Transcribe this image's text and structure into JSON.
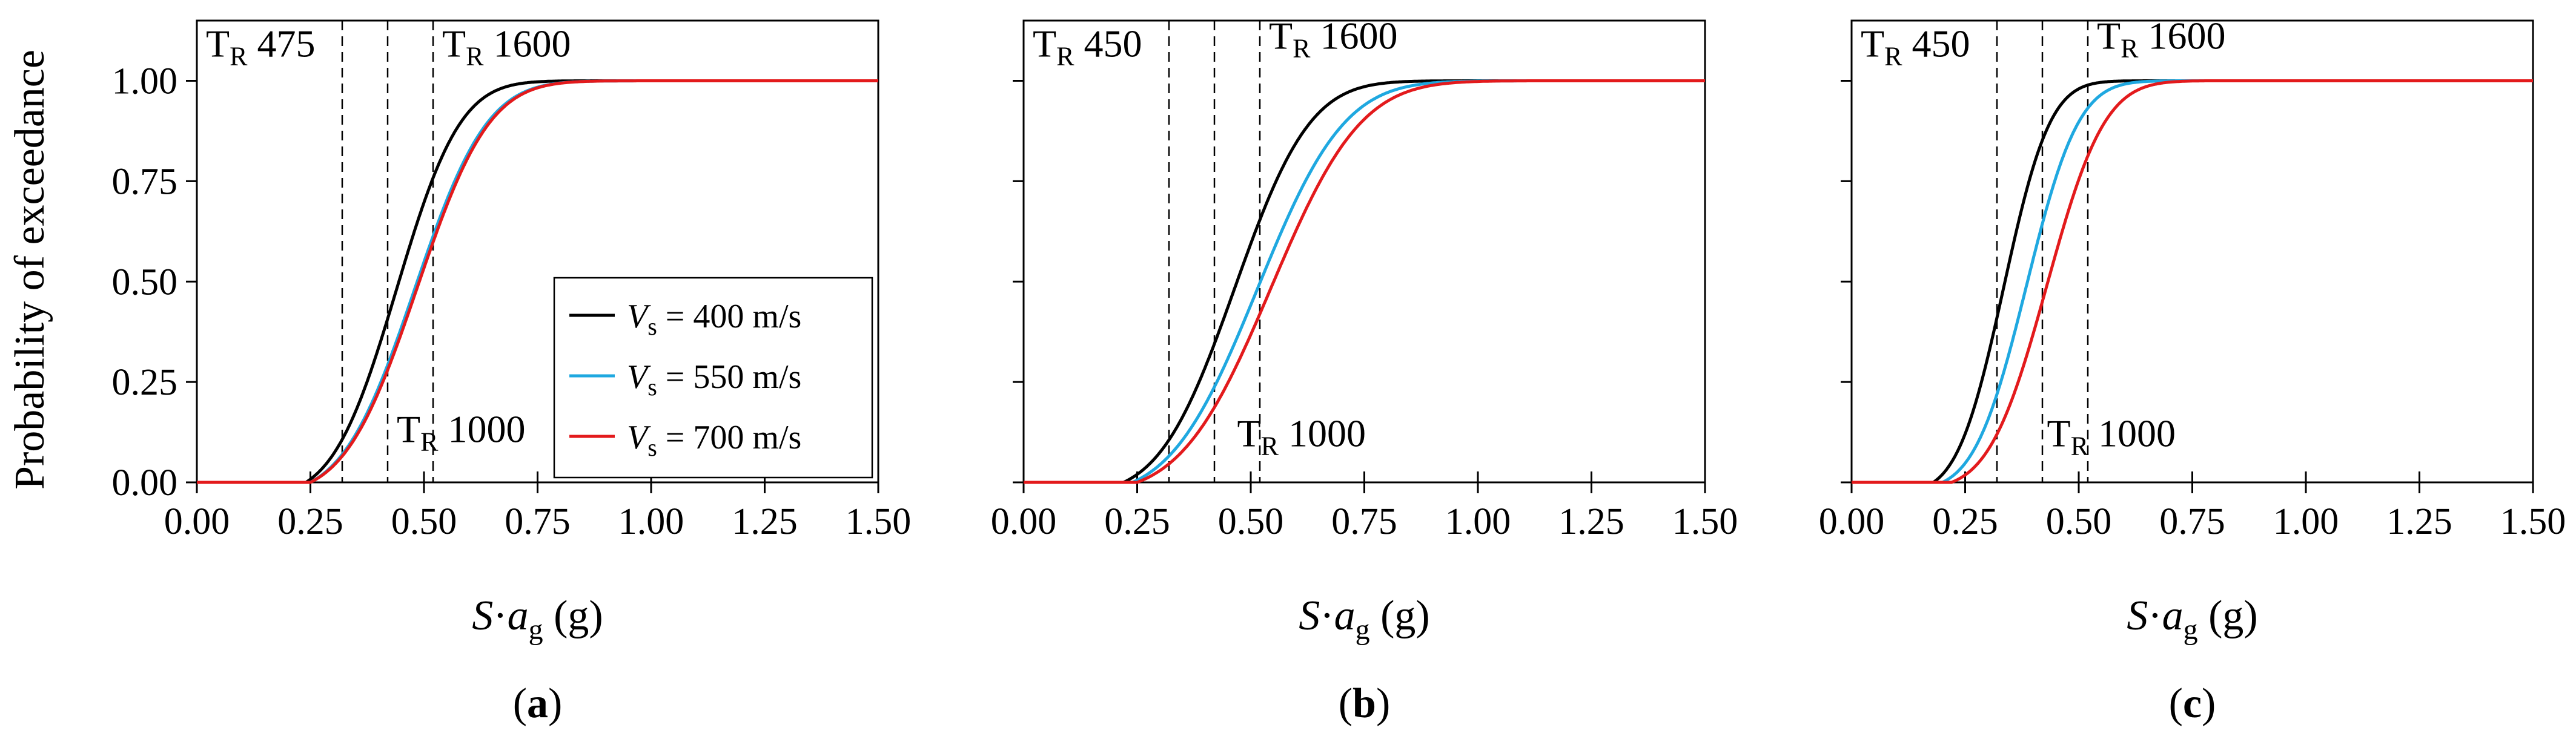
{
  "chart_data": [
    {
      "type": "line",
      "panel_label": "a",
      "xlabel": {
        "base": "S·",
        "italic_a": "a",
        "sub": "g",
        "unit": " (g)"
      },
      "ylabel": "Probability of exceedance",
      "xlim": [
        0,
        1.5
      ],
      "ylim": [
        0,
        1.15
      ],
      "xticks": [
        "0.00",
        "0.25",
        "0.50",
        "0.75",
        "1.00",
        "1.25",
        "1.50"
      ],
      "yticks": [
        "0.00",
        "0.25",
        "0.50",
        "0.75",
        "1.00"
      ],
      "vlines": [
        0.32,
        0.42,
        0.52
      ],
      "annotations": [
        {
          "prefix": "T",
          "sub": "R",
          "value": " 475",
          "x": 0.02,
          "y": 1.06
        },
        {
          "prefix": "T",
          "sub": "R",
          "value": " 1600",
          "x": 0.54,
          "y": 1.06
        },
        {
          "prefix": "T",
          "sub": "R",
          "value": " 1000",
          "x": 0.44,
          "y": 0.1
        }
      ],
      "series": [
        {
          "name": "Vs = 400 m/s",
          "color": "#000000",
          "mean": 0.44,
          "std": 0.11,
          "x0": 0.24,
          "x1": 0.9
        },
        {
          "name": "Vs = 550 m/s",
          "color": "#1fa8e0",
          "mean": 0.48,
          "std": 0.125,
          "x0": 0.25,
          "x1": 1.0
        },
        {
          "name": "Vs = 700 m/s",
          "color": "#e31a1c",
          "mean": 0.485,
          "std": 0.125,
          "x0": 0.25,
          "x1": 1.0
        }
      ],
      "legend": {
        "position": "lower-right",
        "entries": [
          {
            "label_italic": "V",
            "label_sub": "s",
            "label_rest": " = 400 m/s",
            "color": "#000000"
          },
          {
            "label_italic": "V",
            "label_sub": "s",
            "label_rest": " = 550 m/s",
            "color": "#1fa8e0"
          },
          {
            "label_italic": "V",
            "label_sub": "s",
            "label_rest": " = 700 m/s",
            "color": "#e31a1c"
          }
        ]
      }
    },
    {
      "type": "line",
      "panel_label": "b",
      "xlabel": {
        "base": "S·",
        "italic_a": "a",
        "sub": "g",
        "unit": " (g)"
      },
      "ylabel": "",
      "xlim": [
        0,
        1.5
      ],
      "ylim": [
        0,
        1.15
      ],
      "xticks": [
        "0.00",
        "0.25",
        "0.50",
        "0.75",
        "1.00",
        "1.25",
        "1.50"
      ],
      "yticks": [],
      "vlines": [
        0.32,
        0.42,
        0.52
      ],
      "annotations": [
        {
          "prefix": "T",
          "sub": "R",
          "value": " 450",
          "x": 0.02,
          "y": 1.06
        },
        {
          "prefix": "T",
          "sub": "R",
          "value": " 1600",
          "x": 0.54,
          "y": 1.08
        },
        {
          "prefix": "T",
          "sub": "R",
          "value": " 1000",
          "x": 0.47,
          "y": 0.09
        }
      ],
      "series": [
        {
          "name": "Vs = 400 m/s",
          "color": "#000000",
          "mean": 0.465,
          "std": 0.13,
          "x0": 0.22,
          "x1": 1.0
        },
        {
          "name": "Vs = 550 m/s",
          "color": "#1fa8e0",
          "mean": 0.515,
          "std": 0.15,
          "x0": 0.24,
          "x1": 1.12
        },
        {
          "name": "Vs = 700 m/s",
          "color": "#e31a1c",
          "mean": 0.545,
          "std": 0.155,
          "x0": 0.25,
          "x1": 1.12
        }
      ]
    },
    {
      "type": "line",
      "panel_label": "c",
      "xlabel": {
        "base": "S·",
        "italic_a": "a",
        "sub": "g",
        "unit": " (g)"
      },
      "ylabel": "",
      "xlim": [
        0,
        1.5
      ],
      "ylim": [
        0,
        1.15
      ],
      "xticks": [
        "0.00",
        "0.25",
        "0.50",
        "0.75",
        "1.00",
        "1.25",
        "1.50"
      ],
      "yticks": [],
      "vlines": [
        0.32,
        0.42,
        0.52
      ],
      "annotations": [
        {
          "prefix": "T",
          "sub": "R",
          "value": " 450",
          "x": 0.02,
          "y": 1.06
        },
        {
          "prefix": "T",
          "sub": "R",
          "value": " 1600",
          "x": 0.54,
          "y": 1.08
        },
        {
          "prefix": "T",
          "sub": "R",
          "value": " 1000",
          "x": 0.43,
          "y": 0.09
        }
      ],
      "series": [
        {
          "name": "Vs = 400 m/s",
          "color": "#000000",
          "mean": 0.335,
          "std": 0.08,
          "x0": 0.18,
          "x1": 0.66
        },
        {
          "name": "Vs = 550 m/s",
          "color": "#1fa8e0",
          "mean": 0.385,
          "std": 0.09,
          "x0": 0.2,
          "x1": 0.72
        },
        {
          "name": "Vs = 700 m/s",
          "color": "#e31a1c",
          "mean": 0.43,
          "std": 0.1,
          "x0": 0.22,
          "x1": 0.78
        }
      ]
    }
  ]
}
